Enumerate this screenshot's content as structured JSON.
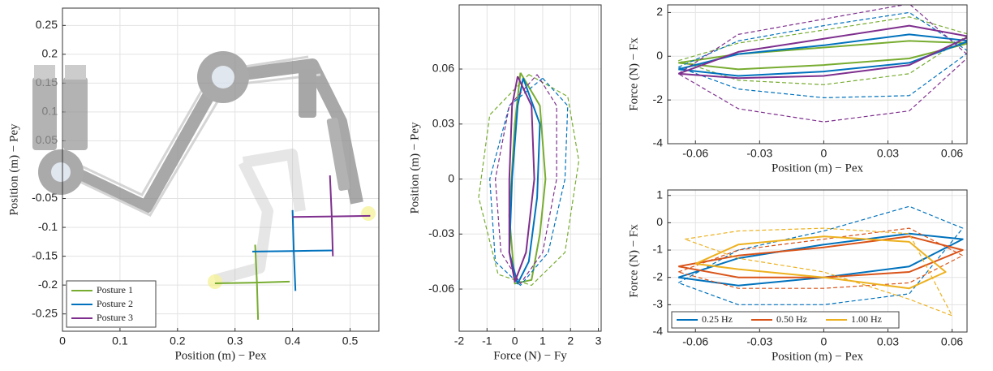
{
  "chart_data": [
    {
      "type": "line",
      "xlabel": "Position (m) − Pex",
      "ylabel": "Position (m) − Pey",
      "xlim": [
        0,
        0.55
      ],
      "ylim": [
        -0.28,
        0.28
      ],
      "xticks": [
        0,
        0.1,
        0.2,
        0.3,
        0.4,
        0.5
      ],
      "yticks": [
        -0.25,
        -0.2,
        -0.15,
        -0.1,
        -0.05,
        0.05,
        0.1,
        0.15,
        0.2,
        0.25
      ],
      "grid": true,
      "legend": "lower left",
      "series": [
        {
          "name": "Posture 1",
          "color": "#77ac30",
          "x": [
            0.265,
            0.33,
            0.395,
            null,
            0.335,
            0.338,
            0.34
          ],
          "y": [
            -0.197,
            -0.196,
            -0.194,
            null,
            -0.13,
            -0.195,
            -0.26
          ]
        },
        {
          "name": "Posture 2",
          "color": "#0072bd",
          "x": [
            0.33,
            0.4,
            0.47,
            null,
            0.4,
            0.402,
            0.405
          ],
          "y": [
            -0.142,
            -0.141,
            -0.14,
            null,
            -0.07,
            -0.14,
            -0.21
          ]
        },
        {
          "name": "Posture 3",
          "color": "#7e2f8e",
          "x": [
            0.4,
            0.47,
            0.535,
            null,
            0.465,
            0.468,
            0.47
          ],
          "y": [
            -0.082,
            -0.081,
            -0.08,
            null,
            -0.01,
            -0.08,
            -0.15
          ]
        }
      ]
    },
    {
      "type": "line",
      "xlabel": "Force (N) − Fy",
      "ylabel": "Position (m) − Pey",
      "xlim": [
        -2,
        3.1
      ],
      "ylim": [
        -0.083,
        0.095
      ],
      "xticks": [
        -2,
        -1,
        0,
        1,
        2,
        3
      ],
      "yticks": [
        -0.06,
        -0.03,
        0,
        0.03,
        0.06
      ],
      "grid": true,
      "series": [
        {
          "color": "#77ac30",
          "x": [
            0.2,
            0.9,
            1.1,
            0.9,
            0.6,
            0.0,
            -0.2,
            0.0,
            0.2
          ],
          "y": [
            0.058,
            0.04,
            0,
            -0.03,
            -0.055,
            -0.057,
            -0.02,
            0.03,
            0.058
          ]
        },
        {
          "color": "#77ac30",
          "dashed": true,
          "x": [
            0.5,
            1.9,
            2.3,
            1.8,
            0.6,
            -0.6,
            -1.3,
            -0.9,
            0.5
          ],
          "y": [
            0.057,
            0.045,
            0.01,
            -0.04,
            -0.058,
            -0.052,
            -0.01,
            0.035,
            0.057
          ]
        },
        {
          "color": "#0072bd",
          "x": [
            0.3,
            0.9,
            0.8,
            0.5,
            0.1,
            -0.2,
            -0.1,
            0.1,
            0.3
          ],
          "y": [
            0.055,
            0.03,
            -0.01,
            -0.045,
            -0.057,
            -0.04,
            0,
            0.04,
            0.055
          ]
        },
        {
          "color": "#0072bd",
          "dashed": true,
          "x": [
            1.0,
            1.9,
            1.8,
            1.2,
            0.2,
            -0.7,
            -0.9,
            -0.2,
            1.0
          ],
          "y": [
            0.055,
            0.04,
            0,
            -0.04,
            -0.058,
            -0.045,
            0,
            0.04,
            0.055
          ]
        },
        {
          "color": "#7e2f8e",
          "x": [
            0.1,
            0.6,
            0.7,
            0.4,
            0.0,
            -0.2,
            -0.2,
            -0.1,
            0.1
          ],
          "y": [
            0.056,
            0.04,
            0,
            -0.04,
            -0.056,
            -0.04,
            0,
            0.04,
            0.056
          ]
        },
        {
          "color": "#7e2f8e",
          "dashed": true,
          "x": [
            0.8,
            1.5,
            1.5,
            1.0,
            0.2,
            -0.5,
            -0.7,
            -0.2,
            0.8
          ],
          "y": [
            0.057,
            0.04,
            0,
            -0.04,
            -0.057,
            -0.04,
            0,
            0.04,
            0.057
          ]
        }
      ]
    },
    {
      "type": "line",
      "xlabel": "Position (m) − Pex",
      "ylabel": "Force (N) − Fx",
      "xlim": [
        -0.073,
        0.067
      ],
      "ylim": [
        -4,
        2.35
      ],
      "xticks": [
        -0.06,
        -0.03,
        0,
        0.03,
        0.06
      ],
      "yticks": [
        -4,
        -2,
        0,
        2
      ],
      "grid": true,
      "series": [
        {
          "color": "#77ac30",
          "x": [
            -0.068,
            -0.04,
            0,
            0.04,
            0.068,
            0.04,
            0,
            -0.04,
            -0.068
          ],
          "y": [
            -0.3,
            0.1,
            0.4,
            0.7,
            0.6,
            -0.1,
            -0.4,
            -0.6,
            -0.3
          ]
        },
        {
          "color": "#77ac30",
          "dashed": true,
          "x": [
            -0.068,
            -0.04,
            0,
            0.04,
            0.068,
            0.04,
            0,
            -0.04,
            -0.068
          ],
          "y": [
            -0.2,
            0.6,
            1.2,
            1.8,
            1.0,
            -0.8,
            -1.3,
            -1.1,
            -0.2
          ]
        },
        {
          "color": "#0072bd",
          "x": [
            -0.068,
            -0.04,
            0,
            0.04,
            0.068,
            0.04,
            0,
            -0.04,
            -0.068
          ],
          "y": [
            -0.6,
            0.1,
            0.5,
            1.0,
            0.7,
            -0.3,
            -0.7,
            -0.9,
            -0.6
          ]
        },
        {
          "color": "#0072bd",
          "dashed": true,
          "x": [
            -0.068,
            -0.04,
            0,
            0.04,
            0.068,
            0.04,
            0,
            -0.04,
            -0.068
          ],
          "y": [
            -0.5,
            0.7,
            1.4,
            2.0,
            0.2,
            -1.8,
            -1.9,
            -1.5,
            -0.5
          ]
        },
        {
          "color": "#7e2f8e",
          "x": [
            -0.068,
            -0.04,
            0,
            0.04,
            0.068,
            0.04,
            0,
            -0.04,
            -0.068
          ],
          "y": [
            -0.8,
            0.2,
            0.8,
            1.4,
            0.9,
            -0.4,
            -0.9,
            -1.0,
            -0.8
          ]
        },
        {
          "color": "#7e2f8e",
          "dashed": true,
          "x": [
            -0.068,
            -0.04,
            0,
            0.04,
            0.068,
            0.04,
            0,
            -0.04,
            -0.068
          ],
          "y": [
            -0.8,
            1.0,
            1.7,
            2.4,
            0.0,
            -2.5,
            -3.0,
            -2.4,
            -0.8
          ]
        }
      ]
    },
    {
      "type": "line",
      "xlabel": "Position (m) − Pex",
      "ylabel": "Force (N) − Fx",
      "xlim": [
        -0.073,
        0.067
      ],
      "ylim": [
        -4,
        1.2
      ],
      "xticks": [
        -0.06,
        -0.03,
        0,
        0.03,
        0.06
      ],
      "yticks": [
        -4,
        -3,
        -2,
        -1,
        0,
        1
      ],
      "grid": true,
      "legend": "lower left",
      "series": [
        {
          "name": "0.25 Hz",
          "color": "#0072bd",
          "x": [
            -0.068,
            -0.04,
            0,
            0.04,
            0.065,
            0.04,
            0,
            -0.04,
            -0.068
          ],
          "y": [
            -2.0,
            -1.3,
            -0.8,
            -0.4,
            -0.6,
            -1.6,
            -2.0,
            -2.3,
            -2.0
          ]
        },
        {
          "color": "#0072bd",
          "dashed": true,
          "x": [
            -0.068,
            -0.04,
            0,
            0.04,
            0.065,
            0.04,
            0,
            -0.04,
            -0.068
          ],
          "y": [
            -2.2,
            -1.0,
            -0.3,
            0.6,
            -0.2,
            -2.6,
            -3.0,
            -3.0,
            -2.2
          ]
        },
        {
          "name": "0.50 Hz",
          "color": "#d95319",
          "x": [
            -0.068,
            -0.04,
            0,
            0.04,
            0.065,
            0.04,
            0,
            -0.04,
            -0.068
          ],
          "y": [
            -1.6,
            -1.2,
            -0.9,
            -0.5,
            -1.0,
            -1.8,
            -2.0,
            -2.0,
            -1.6
          ]
        },
        {
          "color": "#d95319",
          "dashed": true,
          "x": [
            -0.068,
            -0.04,
            0,
            0.04,
            0.065,
            0.04,
            0,
            -0.04,
            -0.068
          ],
          "y": [
            -1.8,
            -1.0,
            -0.6,
            -0.2,
            -1.2,
            -2.2,
            -2.4,
            -2.4,
            -1.8
          ]
        },
        {
          "name": "1.00 Hz",
          "color": "#edb120",
          "x": [
            -0.06,
            -0.04,
            0,
            0.04,
            0.057,
            0.04,
            0,
            -0.04,
            -0.06
          ],
          "y": [
            -1.5,
            -0.8,
            -0.5,
            -0.7,
            -1.8,
            -2.4,
            -2.0,
            -1.7,
            -1.5
          ]
        },
        {
          "color": "#edb120",
          "dashed": true,
          "x": [
            -0.065,
            -0.04,
            0,
            0.04,
            0.06,
            0.04,
            0,
            -0.04,
            -0.065
          ],
          "y": [
            -0.6,
            -0.3,
            -0.2,
            -0.4,
            -3.4,
            -2.8,
            -1.8,
            -1.3,
            -0.6
          ]
        }
      ]
    }
  ]
}
